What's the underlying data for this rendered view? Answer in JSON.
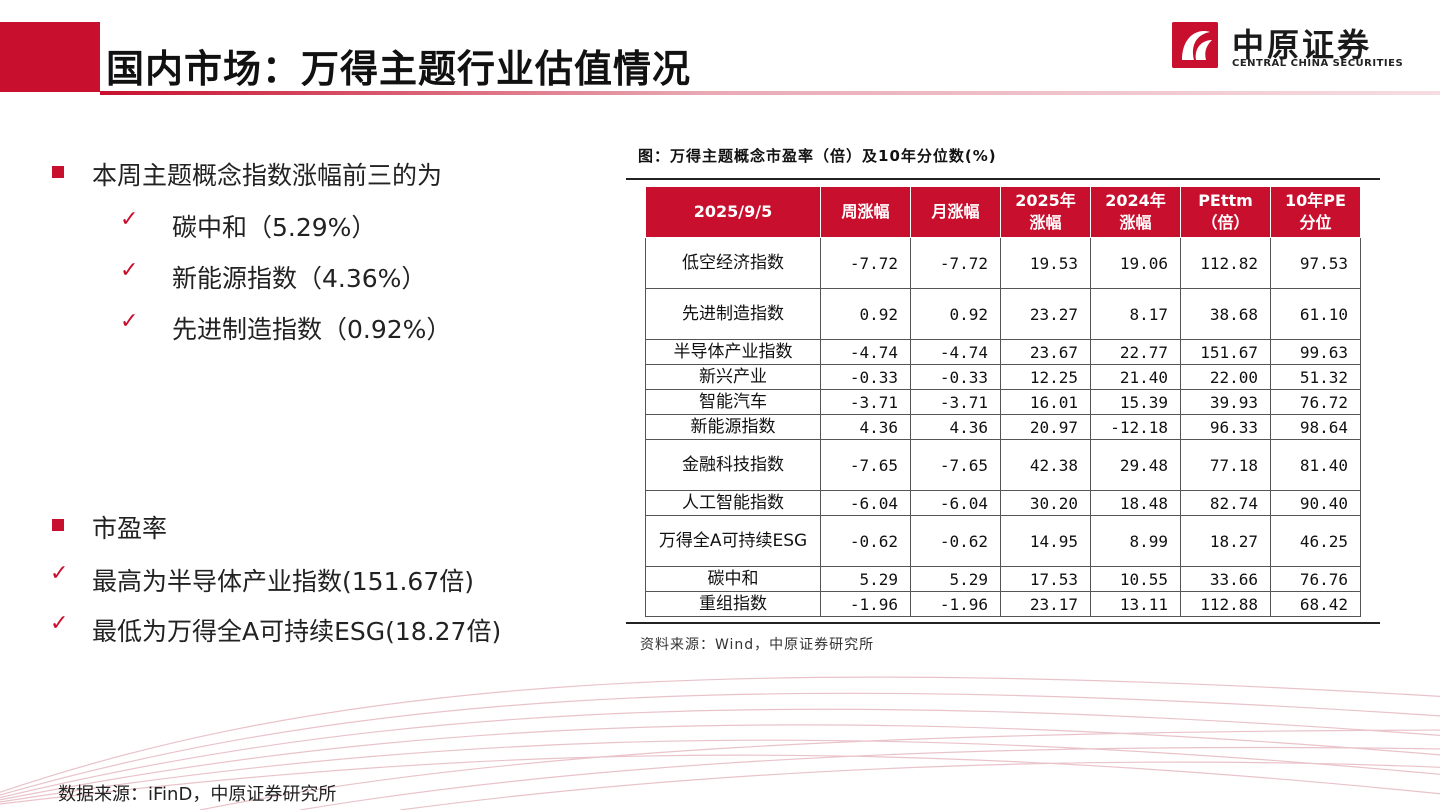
{
  "header": {
    "title": "国内市场：万得主题行业估值情况",
    "logo_cn": "中原证券",
    "logo_en": "CENTRAL CHINA SECURITIES"
  },
  "left": {
    "section1": {
      "heading": "本周主题概念指数涨幅前三的为",
      "items": [
        "碳中和（5.29%）",
        "新能源指数（4.36%）",
        "先进制造指数（0.92%）"
      ]
    },
    "section2": {
      "heading": "市盈率",
      "items": [
        "最高为半导体产业指数(151.67倍)",
        "最低为万得全A可持续ESG(18.27倍)"
      ]
    }
  },
  "table": {
    "caption": "图：万得主题概念市盈率（倍）及10年分位数(%)",
    "headers": [
      [
        "2025/9/5"
      ],
      [
        "周涨幅"
      ],
      [
        "月涨幅"
      ],
      [
        "2025年",
        "涨幅"
      ],
      [
        "2024年",
        "涨幅"
      ],
      [
        "PEttm",
        "（倍）"
      ],
      [
        "10年PE",
        "分位"
      ]
    ],
    "rows": [
      [
        "低空经济指数",
        "-7.72",
        "-7.72",
        "19.53",
        "19.06",
        "112.82",
        "97.53"
      ],
      [
        "先进制造指数",
        "0.92",
        "0.92",
        "23.27",
        "8.17",
        "38.68",
        "61.10"
      ],
      [
        "半导体产业指数",
        "-4.74",
        "-4.74",
        "23.67",
        "22.77",
        "151.67",
        "99.63"
      ],
      [
        "新兴产业",
        "-0.33",
        "-0.33",
        "12.25",
        "21.40",
        "22.00",
        "51.32"
      ],
      [
        "智能汽车",
        "-3.71",
        "-3.71",
        "16.01",
        "15.39",
        "39.93",
        "76.72"
      ],
      [
        "新能源指数",
        "4.36",
        "4.36",
        "20.97",
        "-12.18",
        "96.33",
        "98.64"
      ],
      [
        "金融科技指数",
        "-7.65",
        "-7.65",
        "42.38",
        "29.48",
        "77.18",
        "81.40"
      ],
      [
        "人工智能指数",
        "-6.04",
        "-6.04",
        "30.20",
        "18.48",
        "82.74",
        "90.40"
      ],
      [
        "万得全A可持续ESG",
        "-0.62",
        "-0.62",
        "14.95",
        "8.99",
        "18.27",
        "46.25"
      ],
      [
        "碳中和",
        "5.29",
        "5.29",
        "17.53",
        "10.55",
        "33.66",
        "76.76"
      ],
      [
        "重组指数",
        "-1.96",
        "-1.96",
        "23.17",
        "13.11",
        "112.88",
        "68.42"
      ]
    ],
    "source": "资料来源：Wind，中原证券研究所"
  },
  "footer": {
    "source": "数据来源：iFinD，中原证券研究所"
  },
  "colors": {
    "brand_red": "#c8102e"
  }
}
